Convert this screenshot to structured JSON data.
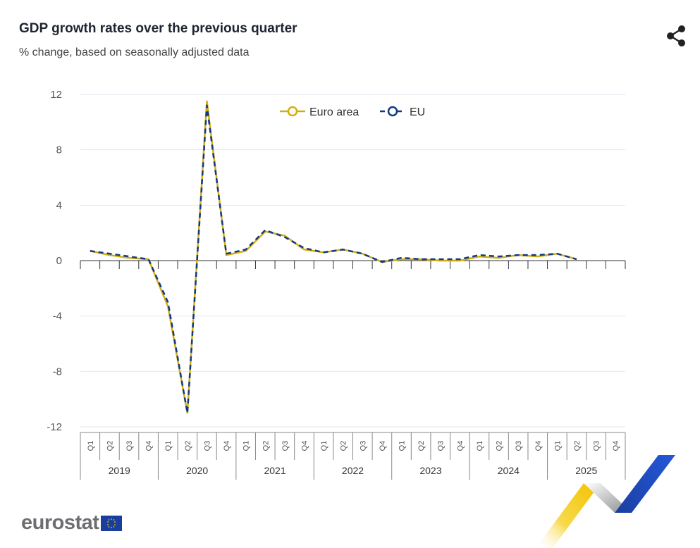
{
  "header": {
    "title": "GDP growth rates over the previous quarter",
    "subtitle": "% change, based on seasonally adjusted data"
  },
  "icons": {
    "share": "share-icon"
  },
  "footer": {
    "logo_text": "eurostat"
  },
  "colors": {
    "euro_area": "#d4ad14",
    "eu": "#123a82",
    "grid": "#e3e6f2",
    "axis": "#333333"
  },
  "chart_data": {
    "type": "line",
    "title": "GDP growth rates over the previous quarter",
    "subtitle": "% change, based on seasonally adjusted data",
    "ylim": [
      -12,
      12
    ],
    "yticks": [
      -12,
      -8,
      -4,
      0,
      4,
      8,
      12
    ],
    "grid": true,
    "legend_position": "top-center",
    "years": [
      "2019",
      "2020",
      "2021",
      "2022",
      "2023",
      "2024",
      "2025"
    ],
    "quarters": [
      "Q1",
      "Q2",
      "Q3",
      "Q4"
    ],
    "series": [
      {
        "name": "Euro area",
        "color": "#d4ad14",
        "values": [
          0.7,
          0.4,
          0.2,
          0.1,
          -3.3,
          -11.0,
          11.5,
          0.4,
          0.7,
          2.1,
          1.8,
          0.8,
          0.6,
          0.8,
          0.5,
          -0.1,
          0.1,
          0.1,
          0.0,
          0.0,
          0.3,
          0.2,
          0.4,
          0.3,
          0.5,
          0.1,
          null,
          null
        ]
      },
      {
        "name": "EU",
        "color": "#123a82",
        "values": [
          0.7,
          0.5,
          0.3,
          0.1,
          -3.0,
          -11.0,
          11.2,
          0.5,
          0.8,
          2.2,
          1.7,
          0.9,
          0.6,
          0.8,
          0.5,
          -0.1,
          0.2,
          0.1,
          0.1,
          0.1,
          0.4,
          0.3,
          0.4,
          0.4,
          0.5,
          0.1,
          null,
          null
        ]
      }
    ]
  }
}
